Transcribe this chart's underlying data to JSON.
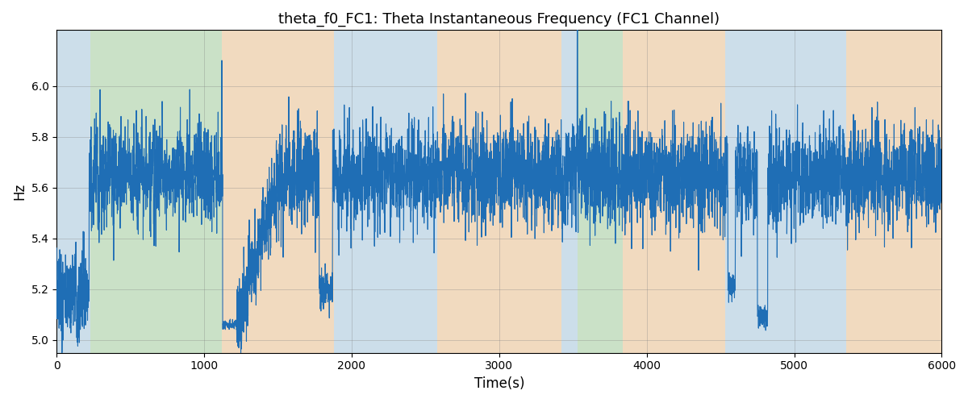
{
  "title": "theta_f0_FC1: Theta Instantaneous Frequency (FC1 Channel)",
  "xlabel": "Time(s)",
  "ylabel": "Hz",
  "xlim": [
    0,
    6000
  ],
  "ylim": [
    4.95,
    6.22
  ],
  "yticks": [
    5.0,
    5.2,
    5.4,
    5.6,
    5.8,
    6.0
  ],
  "xticks": [
    0,
    1000,
    2000,
    3000,
    4000,
    5000,
    6000
  ],
  "line_color": "#1f6eb5",
  "line_width": 0.8,
  "ax_facecolor": "#eef2f8",
  "regions": [
    {
      "start": 0,
      "end": 230,
      "color": "blue"
    },
    {
      "start": 230,
      "end": 1120,
      "color": "green"
    },
    {
      "start": 1120,
      "end": 1880,
      "color": "orange"
    },
    {
      "start": 1880,
      "end": 2580,
      "color": "blue"
    },
    {
      "start": 2580,
      "end": 3420,
      "color": "orange"
    },
    {
      "start": 3420,
      "end": 3530,
      "color": "blue"
    },
    {
      "start": 3530,
      "end": 3840,
      "color": "green"
    },
    {
      "start": 3840,
      "end": 4530,
      "color": "orange"
    },
    {
      "start": 4530,
      "end": 4820,
      "color": "blue"
    },
    {
      "start": 4820,
      "end": 5350,
      "color": "blue"
    },
    {
      "start": 5350,
      "end": 6000,
      "color": "orange"
    }
  ],
  "region_colors": {
    "blue": "#b0cfe0",
    "green": "#aed4a0",
    "orange": "#f5c890"
  },
  "region_alpha": 0.55,
  "figsize": [
    12,
    5
  ],
  "dpi": 100,
  "seed": 7,
  "n_points": 6000,
  "base_freq": 5.65,
  "noise_fast": 0.1,
  "noise_slow_std": 0.015,
  "ar_coef": 0.6
}
